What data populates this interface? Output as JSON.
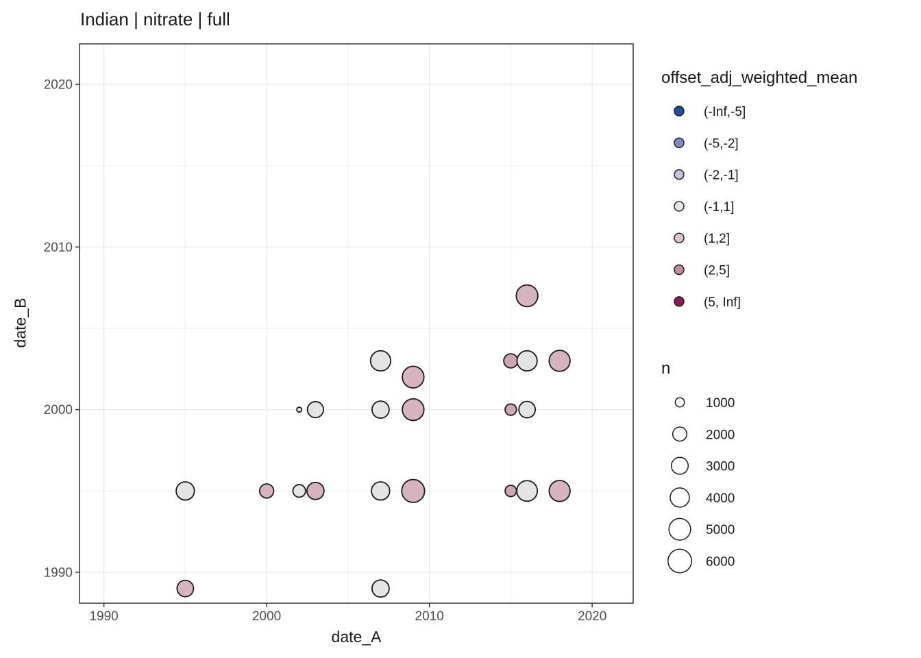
{
  "title": "Indian | nitrate | full",
  "axes": {
    "x_label": "date_A",
    "y_label": "date_B",
    "x_ticks": [
      "1990",
      "2000",
      "2010",
      "2020"
    ],
    "y_ticks": [
      "1990",
      "2000",
      "2010",
      "2020"
    ],
    "x_tick_values": [
      1990,
      2000,
      2010,
      2020
    ],
    "y_tick_values": [
      1990,
      2000,
      2010,
      2020
    ],
    "x_minor": [
      1995,
      2005,
      2015
    ],
    "y_minor": [
      1995,
      2005,
      2015
    ]
  },
  "legend_color": {
    "title": "offset_adj_weighted_mean",
    "items": [
      {
        "label": "(-Inf,-5]",
        "color": "#1f4e9e"
      },
      {
        "label": "(-5,-2]",
        "color": "#8287bd"
      },
      {
        "label": "(-2,-1]",
        "color": "#c3c3d8"
      },
      {
        "label": "(-1,1]",
        "color": "#e8e8e8"
      },
      {
        "label": "(1,2]",
        "color": "#dcc4cc"
      },
      {
        "label": "(2,5]",
        "color": "#c08da0"
      },
      {
        "label": "(5, Inf]",
        "color": "#8c1d50"
      }
    ]
  },
  "legend_size": {
    "title": "n",
    "items": [
      {
        "label": "1000",
        "r": 6.7
      },
      {
        "label": "2000",
        "r": 10.3
      },
      {
        "label": "3000",
        "r": 12.3
      },
      {
        "label": "4000",
        "r": 14.0
      },
      {
        "label": "5000",
        "r": 15.8
      },
      {
        "label": "6000",
        "r": 17.2
      }
    ]
  },
  "chart_data": {
    "type": "scatter",
    "title": "Indian | nitrate | full",
    "xlabel": "date_A",
    "ylabel": "date_B",
    "xlim": [
      1988.5,
      2022.52
    ],
    "ylim": [
      1988.1,
      2022.49
    ],
    "grid": "on",
    "legend_position": "right",
    "color_variable": "offset_adj_weighted_mean",
    "size_variable": "n",
    "points": [
      {
        "date_A": 1995,
        "date_B": 1989,
        "bin": "(1,2]",
        "n": 2900,
        "r": 12.0
      },
      {
        "date_A": 1995,
        "date_B": 1995,
        "bin": "(-1,1]",
        "n": 3600,
        "r": 13.3
      },
      {
        "date_A": 2000,
        "date_B": 1995,
        "bin": "(1,2]",
        "n": 2000,
        "r": 10.3
      },
      {
        "date_A": 2002,
        "date_B": 1995,
        "bin": "(-1,1]",
        "n": 1600,
        "r": 9.2
      },
      {
        "date_A": 2002,
        "date_B": 2000,
        "bin": "(-1,1]",
        "n": 300,
        "r": 3.6
      },
      {
        "date_A": 2003,
        "date_B": 1995,
        "bin": "(1,2]",
        "n": 3100,
        "r": 12.5
      },
      {
        "date_A": 2003,
        "date_B": 2000,
        "bin": "(-1,1]",
        "n": 2700,
        "r": 11.7
      },
      {
        "date_A": 2007,
        "date_B": 1989,
        "bin": "(-1,1]",
        "n": 3100,
        "r": 12.5
      },
      {
        "date_A": 2007,
        "date_B": 1995,
        "bin": "(-1,1]",
        "n": 3600,
        "r": 13.3
      },
      {
        "date_A": 2007,
        "date_B": 2000,
        "bin": "(-1,1]",
        "n": 3100,
        "r": 12.5
      },
      {
        "date_A": 2007,
        "date_B": 2003,
        "bin": "(-1,1]",
        "n": 4300,
        "r": 14.7
      },
      {
        "date_A": 2009,
        "date_B": 1995,
        "bin": "(1,2]",
        "n": 5700,
        "r": 16.7
      },
      {
        "date_A": 2009,
        "date_B": 2000,
        "bin": "(1,2]",
        "n": 5000,
        "r": 15.8
      },
      {
        "date_A": 2009,
        "date_B": 2002,
        "bin": "(1,2]",
        "n": 5000,
        "r": 15.8
      },
      {
        "date_A": 2015,
        "date_B": 1995,
        "bin": "(2,5]",
        "n": 1400,
        "r": 8.3
      },
      {
        "date_A": 2015,
        "date_B": 2000,
        "bin": "(2,5]",
        "n": 1400,
        "r": 8.3
      },
      {
        "date_A": 2015,
        "date_B": 2003,
        "bin": "(2,5]",
        "n": 2000,
        "r": 10.3
      },
      {
        "date_A": 2016,
        "date_B": 1995,
        "bin": "(-1,1]",
        "n": 4500,
        "r": 15.0
      },
      {
        "date_A": 2016,
        "date_B": 2000,
        "bin": "(-1,1]",
        "n": 2900,
        "r": 12.0
      },
      {
        "date_A": 2016,
        "date_B": 2003,
        "bin": "(-1,1]",
        "n": 4300,
        "r": 14.7
      },
      {
        "date_A": 2016,
        "date_B": 2007,
        "bin": "(1,2]",
        "n": 5000,
        "r": 15.8
      },
      {
        "date_A": 2018,
        "date_B": 1995,
        "bin": "(1,2]",
        "n": 4700,
        "r": 15.3
      },
      {
        "date_A": 2018,
        "date_B": 2003,
        "bin": "(1,2]",
        "n": 4700,
        "r": 15.3
      }
    ]
  },
  "colors": {
    "background": "#ffffff",
    "panel_border": "#333333",
    "grid_major": "#e8e8e8",
    "grid_minor": "#f1f1f1",
    "tick_mark": "#333333",
    "tick_label": "#4d4d4d",
    "text": "#1a1a1a",
    "point_stroke": "#1a1a1a",
    "point_fills": {
      "(-Inf,-5]": "#1f4e9e",
      "(-5,-2]": "#8287bd",
      "(-2,-1]": "#c3c3d8",
      "(-1,1]": "#e4e4e4",
      "(1,2]": "#d5b3bf",
      "(2,5]": "#cda6b5",
      "(5, Inf]": "#8c1d50"
    }
  }
}
